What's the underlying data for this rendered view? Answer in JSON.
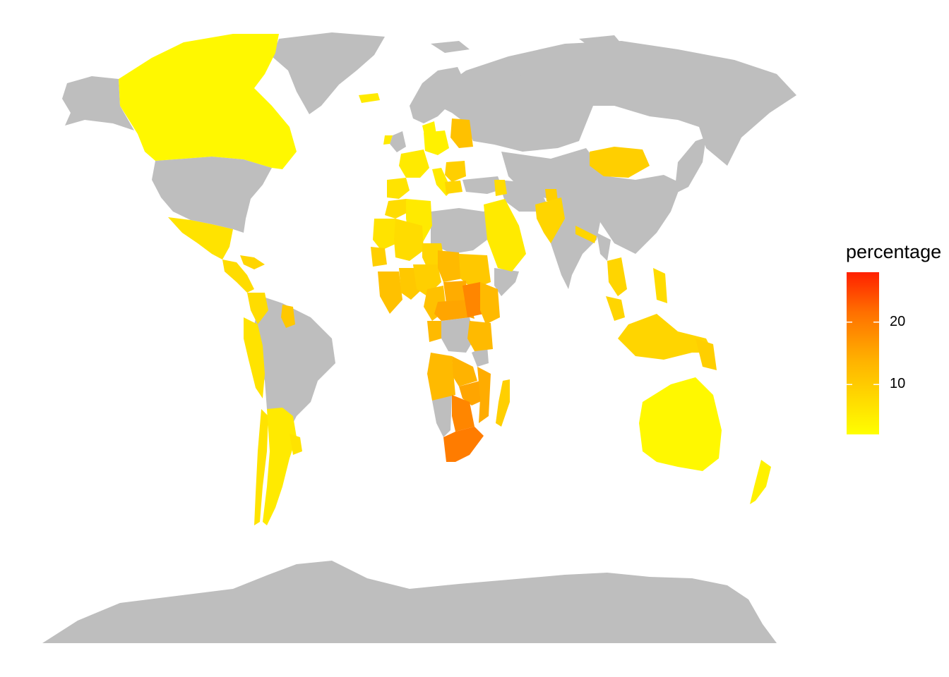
{
  "legend": {
    "title": "percentage",
    "scale_min": 2,
    "scale_max": 28,
    "ticks": [
      {
        "value": 20,
        "label": "20"
      },
      {
        "value": 10,
        "label": "10"
      }
    ],
    "colors": {
      "low": "#ffff00",
      "mid": "#ffa500",
      "high": "#ff2000"
    }
  },
  "colors": {
    "no_data": "#bebebe",
    "background": "#ffffff"
  },
  "regions": [
    {
      "name": "Canada",
      "value": 3
    },
    {
      "name": "Mexico",
      "value": 6
    },
    {
      "name": "Central America",
      "value": 7
    },
    {
      "name": "Caribbean",
      "value": 8
    },
    {
      "name": "Colombia",
      "value": 7
    },
    {
      "name": "Guyana",
      "value": 10
    },
    {
      "name": "Peru",
      "value": 6
    },
    {
      "name": "Chile",
      "value": 6
    },
    {
      "name": "Argentina",
      "value": 5
    },
    {
      "name": "Uruguay",
      "value": 6
    },
    {
      "name": "Iceland",
      "value": 5
    },
    {
      "name": "Ireland",
      "value": 5
    },
    {
      "name": "Spain",
      "value": 6
    },
    {
      "name": "France",
      "value": 5
    },
    {
      "name": "Italy",
      "value": 5
    },
    {
      "name": "Germany",
      "value": 4
    },
    {
      "name": "Norway",
      "value": 4
    },
    {
      "name": "Latvia",
      "value": 11
    },
    {
      "name": "Romania",
      "value": 9
    },
    {
      "name": "Bulgaria",
      "value": 8
    },
    {
      "name": "Morocco",
      "value": 7
    },
    {
      "name": "Algeria",
      "value": 5
    },
    {
      "name": "Mauritania",
      "value": 6
    },
    {
      "name": "Mali",
      "value": 7
    },
    {
      "name": "Niger",
      "value": 8
    },
    {
      "name": "Nigeria",
      "value": 9
    },
    {
      "name": "Senegal",
      "value": 9
    },
    {
      "name": "Cote d'Ivoire",
      "value": 11
    },
    {
      "name": "Ghana",
      "value": 10
    },
    {
      "name": "Chad",
      "value": 12
    },
    {
      "name": "Sudan",
      "value": 10
    },
    {
      "name": "Cameroon",
      "value": 11
    },
    {
      "name": "Central African Rep.",
      "value": 14
    },
    {
      "name": "DR Congo",
      "value": 15
    },
    {
      "name": "Uganda",
      "value": 18
    },
    {
      "name": "Kenya",
      "value": 12
    },
    {
      "name": "Tanzania",
      "value": 12
    },
    {
      "name": "Gabon",
      "value": 12
    },
    {
      "name": "Angola",
      "value": 12
    },
    {
      "name": "Zambia",
      "value": 13
    },
    {
      "name": "Zimbabwe",
      "value": 15
    },
    {
      "name": "Mozambique",
      "value": 14
    },
    {
      "name": "Namibia",
      "value": 14
    },
    {
      "name": "Botswana",
      "value": 18
    },
    {
      "name": "South Africa",
      "value": 19
    },
    {
      "name": "Madagascar",
      "value": 9
    },
    {
      "name": "Saudi Arabia",
      "value": 5
    },
    {
      "name": "Syria",
      "value": 7
    },
    {
      "name": "Armenia",
      "value": 9
    },
    {
      "name": "Pakistan",
      "value": 8
    },
    {
      "name": "Nepal",
      "value": 8
    },
    {
      "name": "Mongolia",
      "value": 9
    },
    {
      "name": "Thailand",
      "value": 8
    },
    {
      "name": "Malaysia",
      "value": 8
    },
    {
      "name": "Philippines",
      "value": 7
    },
    {
      "name": "Indonesia",
      "value": 8
    },
    {
      "name": "Papua New Guinea",
      "value": 9
    },
    {
      "name": "Australia",
      "value": 3
    },
    {
      "name": "New Zealand",
      "value": 4
    }
  ]
}
